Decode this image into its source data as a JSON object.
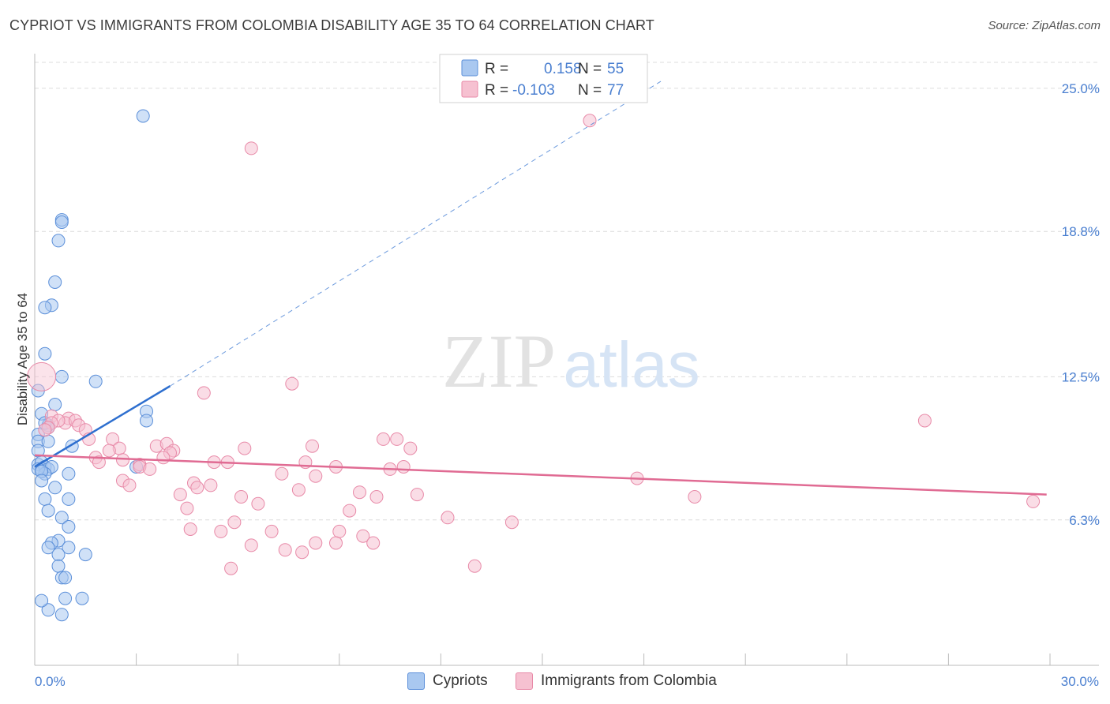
{
  "title": "CYPRIOT VS IMMIGRANTS FROM COLOMBIA DISABILITY AGE 35 TO 64 CORRELATION CHART",
  "source": "Source: ZipAtlas.com",
  "watermark": {
    "zip": "ZIP",
    "atlas": "atlas"
  },
  "colors": {
    "blue_fill": "#a9c8f0",
    "blue_stroke": "#5b8fd9",
    "blue_line": "#2e6fcf",
    "pink_fill": "#f6c1d1",
    "pink_stroke": "#e88aa8",
    "pink_line": "#e06b93",
    "tick_text": "#4a7fd0",
    "grid": "#dcdcdc"
  },
  "legend": {
    "rows": [
      {
        "r_label": "R =",
        "r_value": "0.158",
        "n_label": "N =",
        "n_value": "55"
      },
      {
        "r_label": "R =",
        "r_value": "-0.103",
        "n_label": "N =",
        "n_value": "77"
      }
    ]
  },
  "bottom_legend": [
    "Cypriots",
    "Immigrants from Colombia"
  ],
  "chart_data": {
    "type": "scatter",
    "xlabel": "",
    "ylabel": "Disability Age 35 to 64",
    "xlim": [
      0,
      30
    ],
    "ylim": [
      0,
      26.5
    ],
    "x_tick_labels": [
      "0.0%",
      "30.0%"
    ],
    "y_ticks": [
      6.3,
      12.5,
      18.8,
      25.0
    ],
    "y_tick_labels": [
      "6.3%",
      "12.5%",
      "18.8%",
      "25.0%"
    ],
    "grid": true,
    "legend_position": "top-center",
    "series": [
      {
        "name": "Cypriots",
        "points": [
          [
            3.2,
            23.8
          ],
          [
            0.8,
            19.3
          ],
          [
            0.8,
            19.2
          ],
          [
            0.7,
            18.4
          ],
          [
            0.6,
            16.6
          ],
          [
            0.5,
            15.6
          ],
          [
            0.3,
            15.5
          ],
          [
            0.3,
            13.5
          ],
          [
            0.8,
            12.5
          ],
          [
            1.8,
            12.3
          ],
          [
            0.1,
            11.9
          ],
          [
            0.6,
            11.3
          ],
          [
            0.2,
            10.9
          ],
          [
            3.3,
            11.0
          ],
          [
            3.3,
            10.6
          ],
          [
            0.4,
            10.4
          ],
          [
            0.4,
            10.3
          ],
          [
            0.3,
            10.5
          ],
          [
            0.1,
            10.0
          ],
          [
            0.1,
            9.7
          ],
          [
            0.4,
            9.7
          ],
          [
            1.1,
            9.5
          ],
          [
            0.1,
            9.3
          ],
          [
            0.1,
            8.7
          ],
          [
            0.2,
            8.8
          ],
          [
            0.2,
            8.5
          ],
          [
            0.3,
            8.6
          ],
          [
            0.4,
            8.5
          ],
          [
            0.5,
            8.6
          ],
          [
            0.3,
            8.3
          ],
          [
            0.1,
            8.5
          ],
          [
            0.2,
            8.4
          ],
          [
            0.2,
            8.0
          ],
          [
            1.0,
            8.3
          ],
          [
            3.0,
            8.6
          ],
          [
            0.6,
            7.7
          ],
          [
            0.3,
            7.2
          ],
          [
            1.0,
            7.2
          ],
          [
            0.4,
            6.7
          ],
          [
            0.8,
            6.4
          ],
          [
            1.0,
            6.0
          ],
          [
            0.7,
            5.4
          ],
          [
            0.5,
            5.3
          ],
          [
            0.4,
            5.1
          ],
          [
            1.0,
            5.1
          ],
          [
            1.5,
            4.8
          ],
          [
            0.7,
            4.8
          ],
          [
            0.7,
            4.3
          ],
          [
            0.8,
            3.8
          ],
          [
            0.9,
            3.8
          ],
          [
            0.9,
            2.9
          ],
          [
            1.4,
            2.9
          ],
          [
            0.4,
            2.4
          ],
          [
            0.8,
            2.2
          ],
          [
            0.2,
            2.8
          ]
        ],
        "trend_solid": [
          [
            0.0,
            8.6
          ],
          [
            4.0,
            12.1
          ]
        ],
        "trend_dashed": [
          [
            4.0,
            12.1
          ],
          [
            18.5,
            25.3
          ]
        ]
      },
      {
        "name": "Immigrants from Colombia",
        "points": [
          [
            0.2,
            12.5
          ],
          [
            0.5,
            10.8
          ],
          [
            6.4,
            22.4
          ],
          [
            16.4,
            23.6
          ],
          [
            7.6,
            12.2
          ],
          [
            5.0,
            11.8
          ],
          [
            26.3,
            10.6
          ],
          [
            1.0,
            10.7
          ],
          [
            0.9,
            10.5
          ],
          [
            1.2,
            10.6
          ],
          [
            1.3,
            10.4
          ],
          [
            1.5,
            10.2
          ],
          [
            0.7,
            10.6
          ],
          [
            0.5,
            10.5
          ],
          [
            2.3,
            9.8
          ],
          [
            1.6,
            9.8
          ],
          [
            3.6,
            9.5
          ],
          [
            3.9,
            9.6
          ],
          [
            8.2,
            9.5
          ],
          [
            10.3,
            9.8
          ],
          [
            10.7,
            9.8
          ],
          [
            11.1,
            9.4
          ],
          [
            6.2,
            9.4
          ],
          [
            2.5,
            9.4
          ],
          [
            2.2,
            9.3
          ],
          [
            4.1,
            9.3
          ],
          [
            4.0,
            9.2
          ],
          [
            1.8,
            9.0
          ],
          [
            1.9,
            8.8
          ],
          [
            2.6,
            8.9
          ],
          [
            3.1,
            8.7
          ],
          [
            3.1,
            8.6
          ],
          [
            3.4,
            8.5
          ],
          [
            3.8,
            9.0
          ],
          [
            5.3,
            8.8
          ],
          [
            5.7,
            8.8
          ],
          [
            8.0,
            8.8
          ],
          [
            8.9,
            8.6
          ],
          [
            10.9,
            8.6
          ],
          [
            10.5,
            8.5
          ],
          [
            7.3,
            8.3
          ],
          [
            8.3,
            8.2
          ],
          [
            2.6,
            8.0
          ],
          [
            2.8,
            7.8
          ],
          [
            4.7,
            7.9
          ],
          [
            5.2,
            7.8
          ],
          [
            4.8,
            7.7
          ],
          [
            17.8,
            8.1
          ],
          [
            7.8,
            7.6
          ],
          [
            9.6,
            7.5
          ],
          [
            11.3,
            7.4
          ],
          [
            4.3,
            7.4
          ],
          [
            6.1,
            7.3
          ],
          [
            10.1,
            7.3
          ],
          [
            19.5,
            7.3
          ],
          [
            29.5,
            7.1
          ],
          [
            6.6,
            7.0
          ],
          [
            4.5,
            6.8
          ],
          [
            9.3,
            6.7
          ],
          [
            12.2,
            6.4
          ],
          [
            14.1,
            6.2
          ],
          [
            5.9,
            6.2
          ],
          [
            4.6,
            5.9
          ],
          [
            5.5,
            5.8
          ],
          [
            7.0,
            5.8
          ],
          [
            9.0,
            5.8
          ],
          [
            9.7,
            5.6
          ],
          [
            8.3,
            5.3
          ],
          [
            8.9,
            5.3
          ],
          [
            6.4,
            5.2
          ],
          [
            10.0,
            5.3
          ],
          [
            7.4,
            5.0
          ],
          [
            7.9,
            4.9
          ],
          [
            13.0,
            4.3
          ],
          [
            5.8,
            4.2
          ],
          [
            0.4,
            10.3
          ],
          [
            0.3,
            10.2
          ]
        ],
        "trend_solid": [
          [
            0.0,
            9.1
          ],
          [
            29.9,
            7.4
          ]
        ]
      }
    ]
  }
}
